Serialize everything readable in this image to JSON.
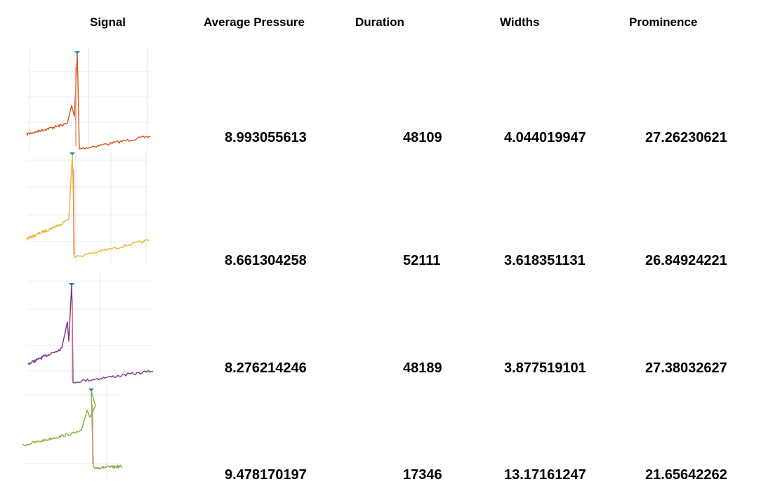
{
  "headers": {
    "signal": "Signal",
    "average_pressure": "Average Pressure",
    "duration": "Duration",
    "widths": "Widths",
    "prominence": "Prominence"
  },
  "rows": [
    {
      "average_pressure": "8.993055613",
      "duration": "48109",
      "widths": "4.044019947",
      "prominence": "27.26230621",
      "color": "#d4581e"
    },
    {
      "average_pressure": "8.661304258",
      "duration": "52111",
      "widths": "3.618351131",
      "prominence": "26.84924221",
      "color": "#e8b52e"
    },
    {
      "average_pressure": "8.276214246",
      "duration": "48189",
      "widths": "3.877519101",
      "prominence": "27.38032627",
      "color": "#7f2f8e"
    },
    {
      "average_pressure": "9.478170197",
      "duration": "17346",
      "widths": "13.17161247",
      "prominence": "21.65642262",
      "color": "#7fb23a"
    }
  ],
  "peak_marker_color": "#1f77b4",
  "width_line_color": "#e8836e"
}
